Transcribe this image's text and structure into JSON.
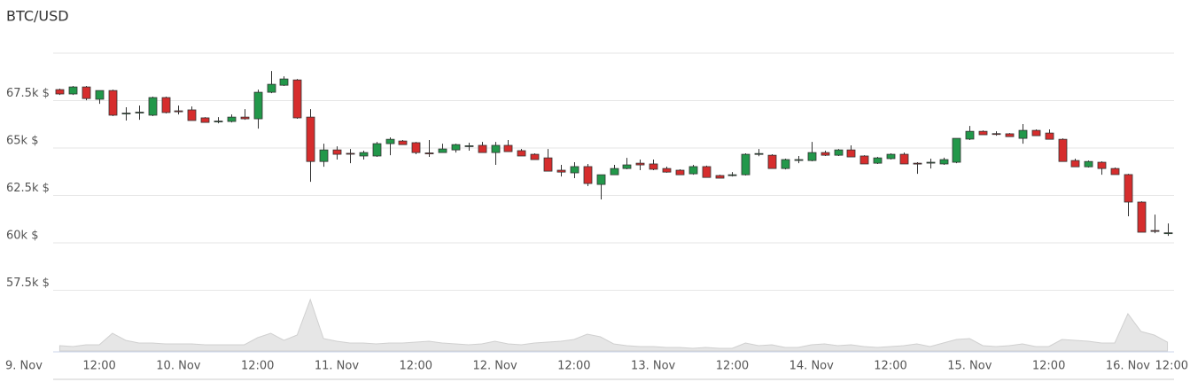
{
  "chart_data": {
    "type": "candlestick",
    "title": "BTC/USD",
    "up_color": "#22984a",
    "down_color": "#d62d2d",
    "volume_color": "#e6e6e6",
    "x": [
      6,
      8,
      10,
      12,
      14,
      16,
      18,
      20,
      22,
      24,
      26,
      28,
      30,
      32,
      34,
      36,
      38,
      40,
      42,
      44,
      46,
      48,
      50,
      52,
      54,
      56,
      58,
      60,
      62,
      64,
      66,
      68,
      70,
      72,
      74,
      76,
      78,
      80,
      82,
      84,
      86,
      88,
      90,
      92,
      94,
      96,
      98,
      100,
      102,
      104,
      106,
      108,
      110,
      112,
      114,
      116,
      118,
      120,
      122,
      124,
      126,
      128,
      130,
      132,
      134,
      136,
      138,
      140,
      142,
      144,
      146,
      148,
      150,
      152,
      154,
      156,
      158,
      160,
      162,
      164,
      166,
      168,
      170,
      172,
      174
    ],
    "open": [
      68080,
      67850,
      68220,
      67570,
      68030,
      66820,
      66860,
      66730,
      67660,
      66960,
      67010,
      66590,
      66400,
      66400,
      66630,
      66540,
      67940,
      68310,
      68590,
      66630,
      64290,
      64900,
      64720,
      64580,
      64580,
      65230,
      65370,
      65280,
      64740,
      64760,
      64900,
      65090,
      65140,
      64760,
      65140,
      64860,
      64670,
      64480,
      63830,
      63690,
      64020,
      63080,
      63590,
      63920,
      64200,
      64160,
      63920,
      63830,
      63640,
      64020,
      63550,
      63570,
      63590,
      64690,
      64620,
      63920,
      64370,
      64340,
      64760,
      64620,
      64900,
      64580,
      64200,
      64440,
      64670,
      64200,
      64220,
      64160,
      64250,
      65470,
      65880,
      65760,
      65750,
      65510,
      65930,
      65790,
      65460,
      64340,
      64010,
      64250,
      63920,
      63600,
      62150,
      60650,
      60510
    ],
    "high": [
      68130,
      68270,
      68270,
      68030,
      68080,
      67150,
      67240,
      67710,
      67710,
      67240,
      67190,
      66630,
      66630,
      66770,
      67050,
      68080,
      69060,
      68780,
      68640,
      67050,
      65230,
      65090,
      64950,
      64860,
      65320,
      65560,
      65420,
      65320,
      65420,
      65230,
      65230,
      65280,
      65320,
      65320,
      65420,
      64950,
      64720,
      64950,
      64110,
      64250,
      64160,
      63590,
      64110,
      64480,
      64390,
      64390,
      64020,
      63880,
      64110,
      64070,
      63590,
      63730,
      64720,
      64950,
      64670,
      64440,
      64580,
      65320,
      64860,
      64950,
      65140,
      64620,
      64530,
      64720,
      64760,
      64250,
      64440,
      64490,
      65510,
      66160,
      65930,
      65880,
      65790,
      66260,
      65980,
      65980,
      65510,
      64440,
      64340,
      64300,
      63970,
      63640,
      62190,
      61490,
      61020
    ],
    "low": [
      67800,
      67800,
      67520,
      67330,
      66680,
      66450,
      66490,
      66680,
      66820,
      66770,
      66450,
      66350,
      66300,
      66350,
      66490,
      66020,
      67890,
      68270,
      66540,
      63220,
      64010,
      64390,
      64200,
      64390,
      64530,
      64620,
      65180,
      64670,
      64530,
      64760,
      64760,
      64860,
      64760,
      64110,
      64810,
      64580,
      64390,
      63780,
      63500,
      63410,
      62990,
      62290,
      63590,
      63880,
      63830,
      63830,
      63700,
      63590,
      63590,
      63450,
      63410,
      63500,
      63550,
      64570,
      63920,
      63870,
      64200,
      64300,
      64580,
      64580,
      64530,
      64160,
      64160,
      64390,
      64160,
      63640,
      63920,
      64110,
      64200,
      65420,
      65700,
      65650,
      65600,
      65230,
      65650,
      65460,
      64290,
      64010,
      63970,
      63590,
      63600,
      61400,
      60560,
      60510,
      60370
    ],
    "close": [
      67850,
      68220,
      67610,
      68030,
      66730,
      66840,
      66890,
      67660,
      66870,
      66910,
      66450,
      66350,
      66420,
      66630,
      66540,
      67940,
      68360,
      68640,
      66590,
      64290,
      64900,
      64670,
      64690,
      64760,
      65230,
      65460,
      65180,
      64760,
      64690,
      64950,
      65180,
      65120,
      64760,
      65140,
      64810,
      64580,
      64390,
      63780,
      63730,
      64020,
      63130,
      63590,
      63920,
      64110,
      64110,
      63880,
      63730,
      63590,
      64020,
      63450,
      63410,
      63590,
      64670,
      64710,
      63920,
      64390,
      64390,
      64760,
      64620,
      64900,
      64530,
      64160,
      64480,
      64670,
      64160,
      64160,
      64250,
      64390,
      65510,
      65880,
      65700,
      65740,
      65600,
      65930,
      65650,
      65460,
      64290,
      64010,
      64290,
      63920,
      63600,
      62150,
      60560,
      60630,
      60530
    ],
    "volume": [
      6,
      5,
      7,
      7,
      20,
      12,
      9,
      9,
      8,
      8,
      8,
      7,
      7,
      7,
      7,
      15,
      20,
      12,
      18,
      58,
      14,
      11,
      9,
      9,
      8,
      9,
      9,
      10,
      11,
      9,
      8,
      7,
      8,
      11,
      8,
      7,
      9,
      10,
      11,
      13,
      19,
      16,
      8,
      6,
      5,
      5,
      4,
      4,
      3,
      4,
      3,
      3,
      9,
      6,
      7,
      4,
      4,
      7,
      8,
      6,
      7,
      5,
      4,
      5,
      6,
      8,
      5,
      9,
      13,
      14,
      6,
      5,
      6,
      8,
      5,
      5,
      13,
      12,
      11,
      9,
      9,
      42,
      22,
      18,
      10
    ],
    "xlim": [
      5,
      175
    ],
    "xticks": [
      {
        "value": 0,
        "label": "9. Nov"
      },
      {
        "value": 12,
        "label": "12:00"
      },
      {
        "value": 24,
        "label": "10. Nov"
      },
      {
        "value": 36,
        "label": "12:00"
      },
      {
        "value": 48,
        "label": "11. Nov"
      },
      {
        "value": 60,
        "label": "12:00"
      },
      {
        "value": 72,
        "label": "12. Nov"
      },
      {
        "value": 84,
        "label": "12:00"
      },
      {
        "value": 96,
        "label": "13. Nov"
      },
      {
        "value": 108,
        "label": "12:00"
      },
      {
        "value": 120,
        "label": "14. Nov"
      },
      {
        "value": 132,
        "label": "12:00"
      },
      {
        "value": 144,
        "label": "15. Nov"
      },
      {
        "value": 156,
        "label": "12:00"
      },
      {
        "value": 168,
        "label": "16. Nov"
      },
      {
        "value": 180,
        "label": "12:00"
      }
    ],
    "ylim": [
      57500,
      70000
    ],
    "yticks": [
      {
        "value": 57500,
        "label": "57.5k $"
      },
      {
        "value": 60000,
        "label": "60k $"
      },
      {
        "value": 62500,
        "label": "62.5k $"
      },
      {
        "value": 65000,
        "label": "65k $"
      },
      {
        "value": 67500,
        "label": "67.5k $"
      }
    ],
    "grid": true
  }
}
